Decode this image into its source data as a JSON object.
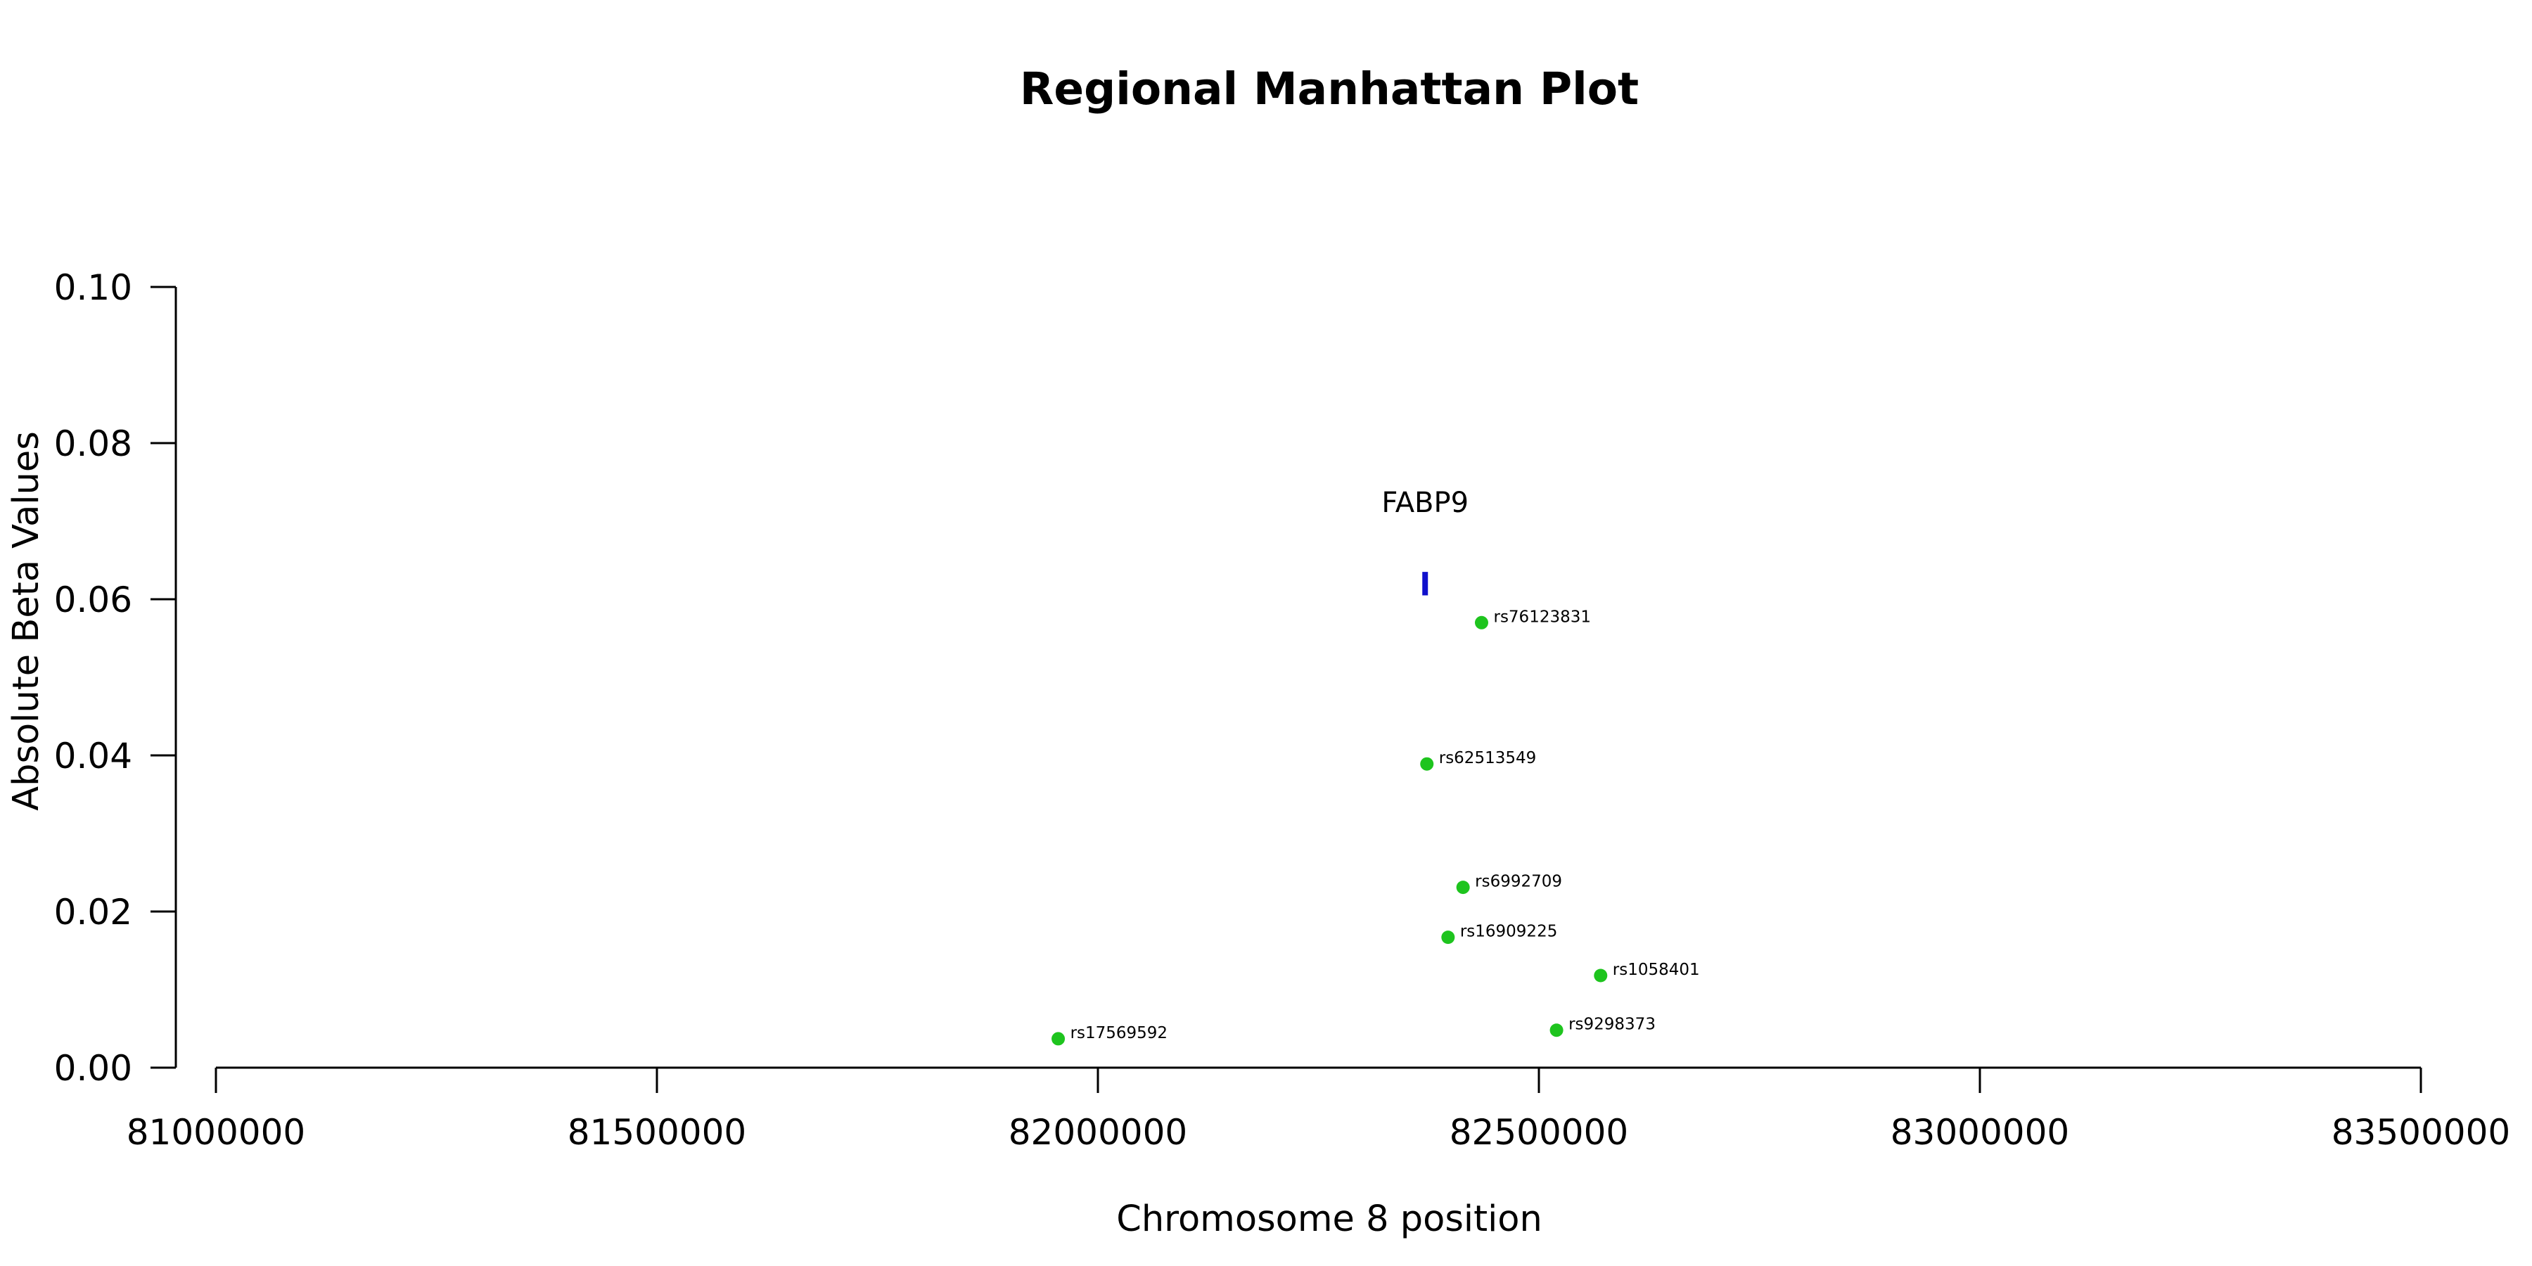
{
  "chart_data": {
    "type": "scatter",
    "title": "Regional Manhattan Plot",
    "xlabel": "Chromosome 8 position",
    "ylabel": "Absolute Beta Values",
    "xlim": [
      81000000,
      83500000
    ],
    "ylim": [
      0,
      0.1
    ],
    "x_ticks": [
      81000000,
      81500000,
      82000000,
      82500000,
      83000000,
      83500000
    ],
    "x_tick_labels": [
      "81000000",
      "81500000",
      "82000000",
      "82500000",
      "83000000",
      "83500000"
    ],
    "y_ticks": [
      0,
      0.02,
      0.04,
      0.06,
      0.08,
      0.1
    ],
    "y_tick_labels": [
      "0.00",
      "0.02",
      "0.04",
      "0.06",
      "0.08",
      "0.10"
    ],
    "grid": false,
    "point_color": "#1ec41e",
    "gene_color": "#1010cc",
    "points": [
      {
        "label": "rs76123831",
        "x": 82435000,
        "y": 0.057
      },
      {
        "label": "rs62513549",
        "x": 82373000,
        "y": 0.0389
      },
      {
        "label": "rs6992709",
        "x": 82414000,
        "y": 0.0231
      },
      {
        "label": "rs16909225",
        "x": 82397000,
        "y": 0.0167
      },
      {
        "label": "rs1058401",
        "x": 82570000,
        "y": 0.0118
      },
      {
        "label": "rs9298373",
        "x": 82520000,
        "y": 0.0048
      },
      {
        "label": "rs17569592",
        "x": 81955000,
        "y": 0.0037
      }
    ],
    "genes": [
      {
        "name": "FABP9",
        "x": 82371000,
        "y_low": 0.0605,
        "y_high": 0.0635
      }
    ]
  }
}
